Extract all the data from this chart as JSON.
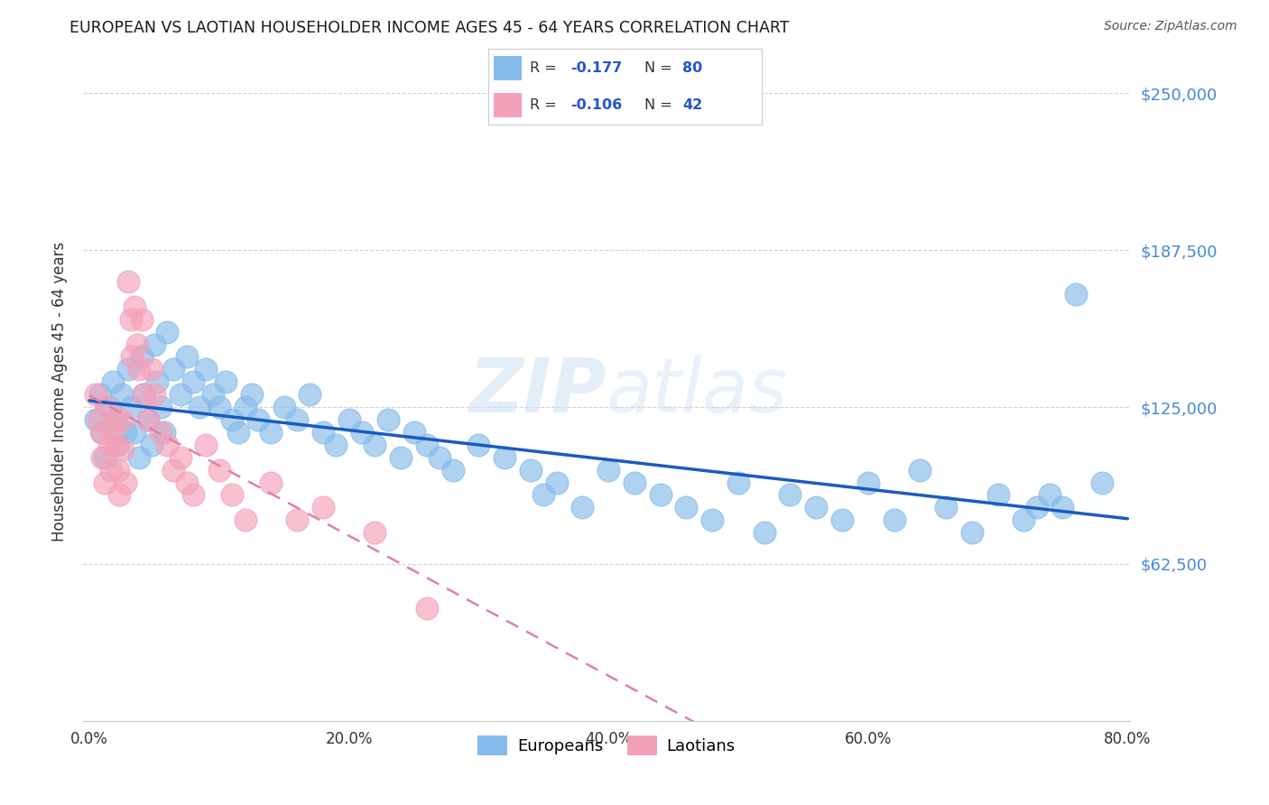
{
  "title": "EUROPEAN VS LAOTIAN HOUSEHOLDER INCOME AGES 45 - 64 YEARS CORRELATION CHART",
  "source": "Source: ZipAtlas.com",
  "ylabel": "Householder Income Ages 45 - 64 years",
  "background_color": "#ffffff",
  "grid_color": "#cccccc",
  "watermark_zip": "ZIP",
  "watermark_atlas": "atlas",
  "yticks_labels": [
    "$62,500",
    "$125,000",
    "$187,500",
    "$250,000"
  ],
  "yticks_values": [
    62500,
    125000,
    187500,
    250000
  ],
  "xlim": [
    -0.005,
    0.802
  ],
  "ylim": [
    0,
    262500
  ],
  "xticks_labels": [
    "0.0%",
    "20.0%",
    "40.0%",
    "60.0%",
    "80.0%"
  ],
  "xticks_values": [
    0.0,
    0.2,
    0.4,
    0.6,
    0.8
  ],
  "legend_R_european": "-0.177",
  "legend_N_european": "80",
  "legend_R_laotian": "-0.106",
  "legend_N_laotian": "42",
  "european_color": "#85baea",
  "laotian_color": "#f4a0b8",
  "trendline_european_color": "#1a5bbf",
  "trendline_laotian_color": "#e080a0",
  "title_color": "#1a1a1a",
  "source_color": "#555555",
  "axis_label_color": "#333333",
  "ytick_label_color": "#4488dd",
  "xtick_label_color": "#333333",
  "europeans_x": [
    0.005,
    0.008,
    0.01,
    0.012,
    0.015,
    0.018,
    0.02,
    0.022,
    0.025,
    0.028,
    0.03,
    0.032,
    0.035,
    0.038,
    0.04,
    0.042,
    0.045,
    0.048,
    0.05,
    0.052,
    0.055,
    0.058,
    0.06,
    0.065,
    0.07,
    0.075,
    0.08,
    0.085,
    0.09,
    0.095,
    0.1,
    0.105,
    0.11,
    0.115,
    0.12,
    0.125,
    0.13,
    0.14,
    0.15,
    0.16,
    0.17,
    0.18,
    0.19,
    0.2,
    0.21,
    0.22,
    0.23,
    0.24,
    0.25,
    0.26,
    0.27,
    0.28,
    0.3,
    0.32,
    0.34,
    0.35,
    0.36,
    0.38,
    0.4,
    0.42,
    0.44,
    0.46,
    0.48,
    0.5,
    0.52,
    0.54,
    0.56,
    0.58,
    0.6,
    0.62,
    0.64,
    0.66,
    0.68,
    0.7,
    0.72,
    0.73,
    0.74,
    0.75,
    0.76,
    0.78
  ],
  "europeans_y": [
    120000,
    130000,
    115000,
    105000,
    125000,
    135000,
    120000,
    110000,
    130000,
    115000,
    140000,
    125000,
    115000,
    105000,
    145000,
    130000,
    120000,
    110000,
    150000,
    135000,
    125000,
    115000,
    155000,
    140000,
    130000,
    145000,
    135000,
    125000,
    140000,
    130000,
    125000,
    135000,
    120000,
    115000,
    125000,
    130000,
    120000,
    115000,
    125000,
    120000,
    130000,
    115000,
    110000,
    120000,
    115000,
    110000,
    120000,
    105000,
    115000,
    110000,
    105000,
    100000,
    110000,
    105000,
    100000,
    90000,
    95000,
    85000,
    100000,
    95000,
    90000,
    85000,
    80000,
    95000,
    75000,
    90000,
    85000,
    80000,
    95000,
    80000,
    100000,
    85000,
    75000,
    90000,
    80000,
    85000,
    90000,
    85000,
    170000,
    95000
  ],
  "laotians_x": [
    0.005,
    0.007,
    0.009,
    0.01,
    0.012,
    0.013,
    0.015,
    0.017,
    0.018,
    0.02,
    0.021,
    0.022,
    0.023,
    0.025,
    0.026,
    0.028,
    0.03,
    0.032,
    0.033,
    0.035,
    0.037,
    0.038,
    0.04,
    0.042,
    0.045,
    0.048,
    0.05,
    0.055,
    0.06,
    0.065,
    0.07,
    0.075,
    0.08,
    0.09,
    0.1,
    0.11,
    0.12,
    0.14,
    0.16,
    0.18,
    0.22,
    0.26
  ],
  "laotians_y": [
    130000,
    120000,
    115000,
    105000,
    95000,
    125000,
    110000,
    100000,
    115000,
    120000,
    110000,
    100000,
    90000,
    120000,
    108000,
    95000,
    175000,
    160000,
    145000,
    165000,
    150000,
    140000,
    160000,
    130000,
    120000,
    140000,
    130000,
    115000,
    110000,
    100000,
    105000,
    95000,
    90000,
    110000,
    100000,
    90000,
    80000,
    95000,
    80000,
    85000,
    75000,
    45000
  ]
}
